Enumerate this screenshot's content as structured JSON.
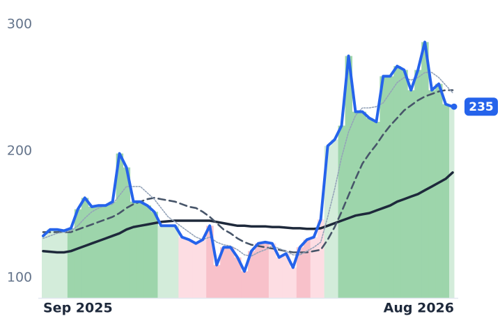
{
  "chart_data": {
    "type": "line",
    "categories": [
      "Sep 2025",
      null,
      null,
      null,
      null,
      null,
      null,
      null,
      null,
      null,
      null,
      null,
      null,
      null,
      null,
      null,
      null,
      null,
      null,
      null,
      null,
      null,
      null,
      null,
      null,
      null,
      null,
      null,
      null,
      null,
      null,
      null,
      null,
      null,
      null,
      null,
      null,
      null,
      null,
      null,
      null,
      null,
      null,
      null,
      null,
      null,
      null,
      null,
      null,
      null,
      null,
      null,
      null,
      null,
      null,
      null,
      null,
      null,
      null,
      "Aug 2026"
    ],
    "series": [
      {
        "color": "#2563eb",
        "style": "solid",
        "values": [
          133,
          138,
          138,
          137,
          139,
          154,
          163,
          156,
          157,
          157,
          160,
          198,
          187,
          160,
          160,
          157,
          152,
          141,
          141,
          141,
          132,
          130,
          127,
          130,
          141,
          110,
          124,
          124,
          116,
          105,
          121,
          127,
          128,
          127,
          116,
          119,
          108,
          124,
          130,
          132,
          146,
          204,
          209,
          220,
          275,
          231,
          231,
          226,
          223,
          259,
          259,
          267,
          264,
          248,
          264,
          286,
          248,
          253,
          237,
          235
        ]
      },
      {
        "color": "#94a3b8",
        "style": "dotted",
        "values": [
          131,
          133,
          135,
          136,
          137,
          141,
          147,
          152,
          155,
          157,
          158,
          165,
          172,
          172,
          172,
          167,
          162,
          155,
          148,
          144,
          140,
          136,
          132,
          130,
          132,
          128,
          126,
          125,
          122,
          118,
          117,
          120,
          122,
          125,
          123,
          121,
          118,
          118,
          121,
          124,
          128,
          148,
          170,
          195,
          215,
          228,
          234,
          234,
          235,
          238,
          246,
          254,
          258,
          256,
          258,
          262,
          262,
          258,
          252,
          246
        ]
      },
      {
        "color": "#475569",
        "style": "dashed",
        "values": [
          136,
          136,
          136,
          136,
          136,
          138,
          140,
          142,
          144,
          146,
          148,
          151,
          155,
          158,
          160,
          162,
          163,
          162,
          161,
          160,
          158,
          156,
          155,
          152,
          148,
          143,
          138,
          135,
          131,
          128,
          126,
          125,
          124,
          123,
          122,
          121,
          120,
          120,
          120,
          121,
          122,
          130,
          140,
          152,
          165,
          178,
          190,
          198,
          205,
          213,
          220,
          226,
          232,
          236,
          240,
          243,
          245,
          247,
          248,
          248
        ]
      },
      {
        "color": "#1e293b",
        "style": "solid",
        "values": [
          121,
          120.5,
          120,
          120,
          121,
          123,
          125,
          127,
          129,
          131,
          133,
          135,
          138,
          140,
          141,
          142,
          143,
          144,
          144.5,
          145,
          145,
          145,
          145,
          145,
          145,
          144,
          143,
          142,
          141,
          141,
          140.5,
          140.5,
          140.5,
          140,
          140,
          139.5,
          139,
          139,
          138.5,
          138.5,
          139,
          141,
          143,
          145,
          147,
          149,
          150,
          151,
          153,
          155,
          157,
          160,
          162,
          164,
          166,
          169,
          172,
          175,
          178,
          183
        ]
      }
    ],
    "bar_colors": [
      "#d3ecda",
      "#d3ecda",
      "#d3ecda",
      "#d3ecda",
      "#9dd5ab",
      "#9dd5ab",
      "#9dd5ab",
      "#9dd5ab",
      "#9dd5ab",
      "#9dd5ab",
      "#9dd5ab",
      "#9dd5ab",
      "#9dd5ab",
      "#9dd5ab",
      "#9dd5ab",
      "#9dd5ab",
      "#9dd5ab",
      "#d3ecda",
      "#d3ecda",
      "#d3ecda",
      "#fddde3",
      "#fddde3",
      "#fddde3",
      "#fddde3",
      "#f8c1ca",
      "#f8c1ca",
      "#f8c1ca",
      "#f8c1ca",
      "#f8c1ca",
      "#f8c1ca",
      "#f8c1ca",
      "#f8c1ca",
      "#f8c1ca",
      "#fddde3",
      "#fddde3",
      "#fddde3",
      "#fddde3",
      "#f8c1ca",
      "#f8c1ca",
      "#fddde3",
      "#fddde3",
      "#d3ecda",
      "#d3ecda",
      "#9dd5ab",
      "#9dd5ab",
      "#9dd5ab",
      "#9dd5ab",
      "#9dd5ab",
      "#9dd5ab",
      "#9dd5ab",
      "#9dd5ab",
      "#9dd5ab",
      "#9dd5ab",
      "#9dd5ab",
      "#9dd5ab",
      "#9dd5ab",
      "#9dd5ab",
      "#9dd5ab",
      "#9dd5ab",
      "#d3ecda"
    ],
    "ylim": [
      84,
      306
    ],
    "yticks": [
      100,
      200,
      300
    ],
    "grid": false
  }
}
